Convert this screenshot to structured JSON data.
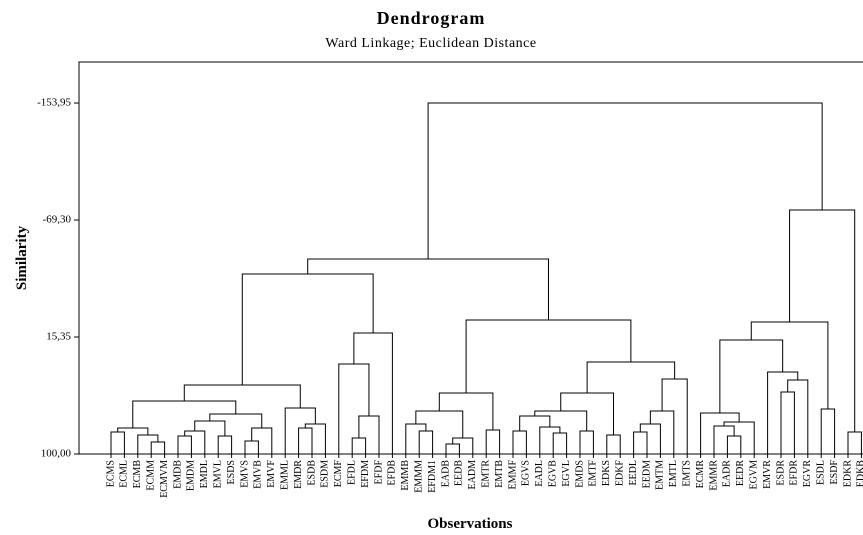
{
  "chart_data": {
    "type": "dendrogram",
    "title": "Dendrogram",
    "subtitle": "Ward Linkage; Euclidean Distance",
    "x_label": "Observations",
    "y_label": "Similarity",
    "ylim": [
      100,
      -183.65
    ],
    "yticks": [
      {
        "value": -153.95,
        "label": "-153,95"
      },
      {
        "value": -69.3,
        "label": "-69,30"
      },
      {
        "value": 15.35,
        "label": "15,35"
      },
      {
        "value": 100,
        "label": "100,00"
      }
    ],
    "color": "#000000",
    "leaves": [
      "ECMS",
      "ECML",
      "ECMB",
      "ECMM",
      "ECMVM",
      "EMDB",
      "EMDM",
      "EMDL",
      "EMVL",
      "ESDS",
      "EMVS",
      "EMVB",
      "EMVF",
      "EMML",
      "EMDR",
      "ESDB",
      "ESDM",
      "ECMF",
      "EFDL",
      "EFDM",
      "EFDF",
      "EFDB",
      "EMMB",
      "EMMM",
      "EFDM1",
      "EADB",
      "EEDB",
      "EADM",
      "EMTR",
      "EMTB",
      "EMMF",
      "EGVS",
      "EADL",
      "EGVB",
      "EGVL",
      "EMDS",
      "EMTF",
      "EDKS",
      "EDKF",
      "EEDL",
      "EEDM",
      "EMTM",
      "EMTL",
      "EMTS",
      "ECMR",
      "EMMR",
      "EADR",
      "EEDR",
      "EGVM",
      "EMVR",
      "ESDR",
      "EFDR",
      "EGVR",
      "ESDL",
      "ESDF",
      "EDKR",
      "EDKB"
    ],
    "merges": [
      [
        0,
        1,
        84.08
      ],
      [
        3,
        4,
        91.32
      ],
      [
        2,
        58,
        86.25
      ],
      [
        57,
        59,
        81.19
      ],
      [
        5,
        6,
        86.98
      ],
      [
        61,
        7,
        83.36
      ],
      [
        8,
        9,
        86.98
      ],
      [
        62,
        63,
        76.12
      ],
      [
        10,
        11,
        90.59
      ],
      [
        65,
        12,
        81.19
      ],
      [
        64,
        66,
        71.06
      ],
      [
        60,
        67,
        61.65
      ],
      [
        14,
        15,
        81.19
      ],
      [
        69,
        16,
        78.3
      ],
      [
        13,
        70,
        66.72
      ],
      [
        68,
        71,
        50.08
      ],
      [
        18,
        19,
        88.42
      ],
      [
        73,
        20,
        72.51
      ],
      [
        17,
        74,
        34.89
      ],
      [
        75,
        21,
        12.46
      ],
      [
        72,
        76,
        -30.23
      ],
      [
        23,
        24,
        83.36
      ],
      [
        22,
        78,
        78.3
      ],
      [
        25,
        26,
        92.77
      ],
      [
        80,
        27,
        88.42
      ],
      [
        79,
        81,
        68.89
      ],
      [
        28,
        29,
        82.64
      ],
      [
        82,
        83,
        55.87
      ],
      [
        30,
        31,
        83.36
      ],
      [
        33,
        34,
        84.81
      ],
      [
        32,
        86,
        80.47
      ],
      [
        85,
        87,
        72.51
      ],
      [
        35,
        36,
        83.36
      ],
      [
        88,
        89,
        68.89
      ],
      [
        37,
        38,
        86.25
      ],
      [
        90,
        91,
        55.87
      ],
      [
        39,
        40,
        84.08
      ],
      [
        93,
        41,
        78.3
      ],
      [
        94,
        42,
        68.89
      ],
      [
        95,
        43,
        45.74
      ],
      [
        92,
        96,
        33.44
      ],
      [
        84,
        97,
        3.05
      ],
      [
        77,
        98,
        -41.08
      ],
      [
        46,
        47,
        86.98
      ],
      [
        45,
        100,
        79.74
      ],
      [
        101,
        48,
        76.85
      ],
      [
        44,
        102,
        70.34
      ],
      [
        50,
        51,
        55.14
      ],
      [
        104,
        52,
        46.46
      ],
      [
        49,
        105,
        40.67
      ],
      [
        103,
        106,
        17.52
      ],
      [
        55,
        56,
        84.08
      ],
      [
        53,
        54,
        67.44
      ],
      [
        107,
        109,
        4.5
      ],
      [
        110,
        108,
        -76.53
      ],
      [
        99,
        111,
        -153.95
      ]
    ]
  }
}
